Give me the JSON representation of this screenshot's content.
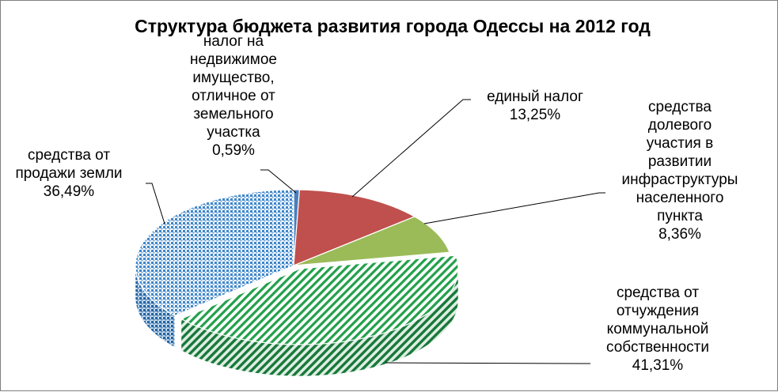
{
  "chart_data": {
    "type": "pie",
    "style": "3d-exploded",
    "title": "Структура бюджета развития города Одессы на 2012 год",
    "slices": [
      {
        "key": "property",
        "lines": [
          "налог на",
          "недвижимое",
          "имущество,",
          "отличное от",
          "земельного",
          "участка"
        ],
        "value_label": "0,59%",
        "value": 0.59,
        "color": "#4a7ebb",
        "pattern": "solid"
      },
      {
        "key": "single_tax",
        "lines": [
          "единый налог"
        ],
        "value_label": "13,25%",
        "value": 13.25,
        "color": "#c0504d",
        "pattern": "solid"
      },
      {
        "key": "shared",
        "lines": [
          "средства",
          "долевого",
          "участия в",
          "развитии",
          "инфраструктуры",
          "населенного",
          "пункта"
        ],
        "value_label": "8,36%",
        "value": 8.36,
        "color": "#9bbb59",
        "pattern": "solid"
      },
      {
        "key": "communal",
        "lines": [
          "средства от",
          "отчуждения",
          "коммунальной",
          "собственности"
        ],
        "value_label": "41,31%",
        "value": 41.31,
        "color": "#22a04b",
        "pattern": "diagonal-stripes"
      },
      {
        "key": "land",
        "lines": [
          "средства от",
          "продажи земли"
        ],
        "value_label": "36,49%",
        "value": 36.49,
        "color": "#3f86c9",
        "pattern": "dots"
      }
    ]
  }
}
